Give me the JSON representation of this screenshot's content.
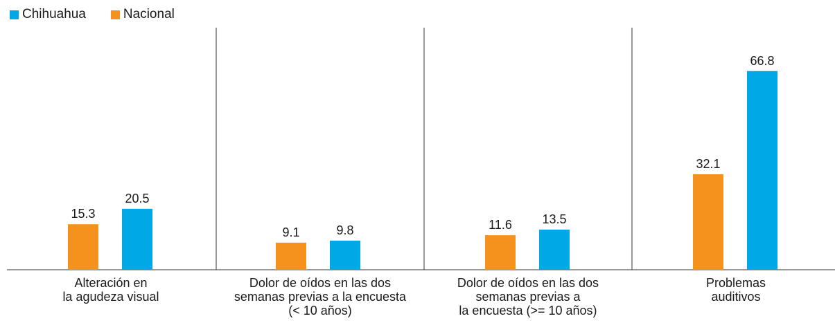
{
  "legend": {
    "series_a": {
      "label": "Chihuahua",
      "color": "#00a9e6"
    },
    "series_b": {
      "label": "Nacional",
      "color": "#f5921e"
    }
  },
  "chart_data": {
    "type": "bar",
    "title": "",
    "xlabel": "",
    "ylabel": "",
    "ylim": [
      0,
      70
    ],
    "grid": false,
    "legend_position": "top-left",
    "categories": [
      "Alteración en\nla agudeza visual",
      "Dolor de oídos en las dos\nsemanas previas a la encuesta\n(< 10 años)",
      "Dolor de oídos en las dos\nsemanas previas a\nla encuesta (>= 10 años)",
      "Problemas\nauditivos"
    ],
    "series": [
      {
        "name": "Nacional",
        "color": "#f5921e",
        "values": [
          15.3,
          9.1,
          11.6,
          32.1
        ]
      },
      {
        "name": "Chihuahua",
        "color": "#00a9e6",
        "values": [
          20.5,
          9.8,
          13.5,
          66.8
        ]
      }
    ]
  }
}
